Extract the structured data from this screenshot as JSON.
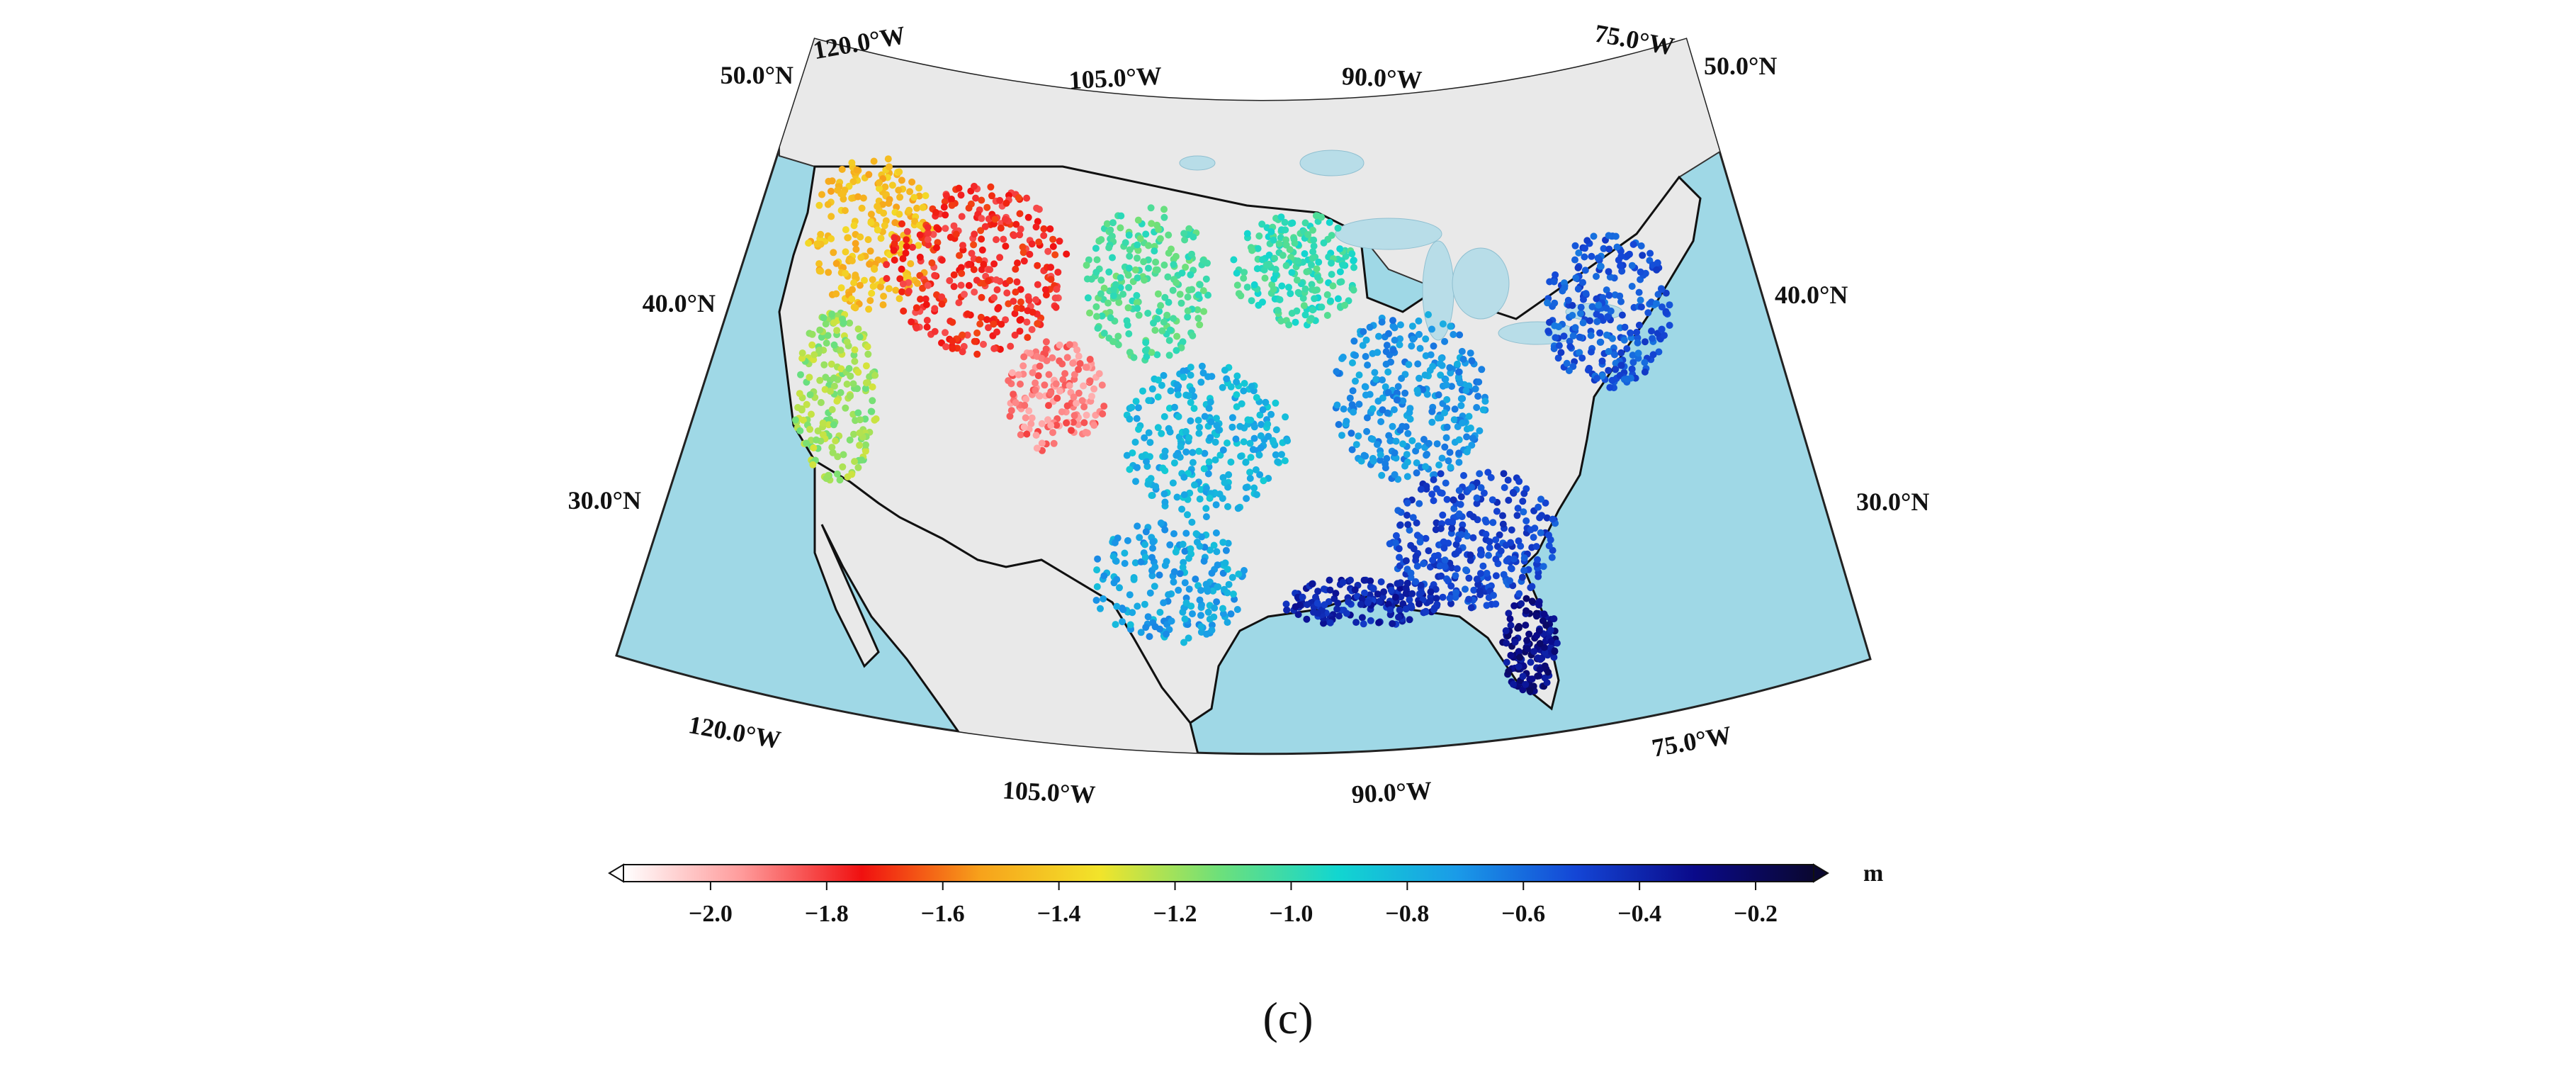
{
  "map": {
    "longitude_labels_top": [
      "120.0°W",
      "105.0°W",
      "90.0°W",
      "75.0°W"
    ],
    "longitude_labels_bottom": [
      "120.0°W",
      "105.0°W",
      "90.0°W",
      "75.0°W"
    ],
    "latitude_labels_left": [
      "50.0°N",
      "40.0°N",
      "30.0°N"
    ],
    "latitude_labels_right": [
      "50.0°N",
      "40.0°N",
      "30.0°N"
    ],
    "colors": {
      "ocean": "#9fd8e6",
      "land": "#e9e9e9",
      "coast": "#000000",
      "lakes": "#b8dde8"
    },
    "stations": [
      {
        "region": "west-coast-north",
        "value": -1.45
      },
      {
        "region": "west-mountains",
        "value": -1.75
      },
      {
        "region": "colorado-rockies",
        "value": -1.9
      },
      {
        "region": "california-coast",
        "value": -1.2
      },
      {
        "region": "great-plains-north",
        "value": -1.05
      },
      {
        "region": "upper-midwest",
        "value": -1.0
      },
      {
        "region": "central-plains",
        "value": -0.8
      },
      {
        "region": "texas",
        "value": -0.75
      },
      {
        "region": "midwest-east",
        "value": -0.7
      },
      {
        "region": "southeast",
        "value": -0.5
      },
      {
        "region": "northeast",
        "value": -0.55
      },
      {
        "region": "gulf-coast",
        "value": -0.4
      },
      {
        "region": "florida",
        "value": -0.3
      }
    ]
  },
  "colorbar": {
    "unit": "m",
    "min": -2.15,
    "max": -0.1,
    "extend": "both",
    "tick_labels": [
      "−2.0",
      "−1.8",
      "−1.6",
      "−1.4",
      "−1.2",
      "−1.0",
      "−0.8",
      "−0.6",
      "−0.4",
      "−0.2"
    ],
    "tick_values": [
      -2.0,
      -1.8,
      -1.6,
      -1.4,
      -1.2,
      -1.0,
      -0.8,
      -0.6,
      -0.4,
      -0.2
    ],
    "color_stops": [
      "#ffffff",
      "#ff9a9a",
      "#f01010",
      "#f7a21b",
      "#f2e42a",
      "#6ee07a",
      "#12d6d0",
      "#1a9be8",
      "#1446d6",
      "#0a0a8a",
      "#0a0730"
    ]
  },
  "panel_label": "(c)"
}
